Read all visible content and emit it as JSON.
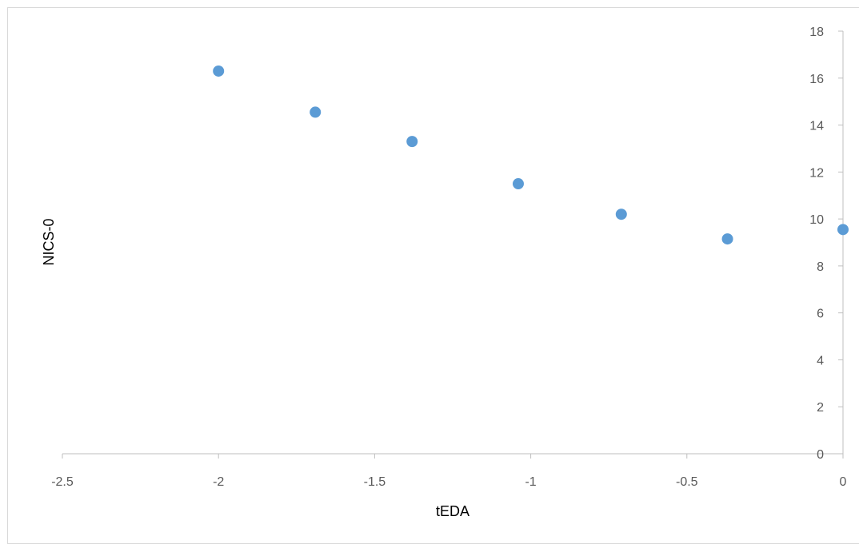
{
  "chart_data": {
    "type": "scatter",
    "title": "",
    "xlabel": "tEDA",
    "ylabel": "NICS-0",
    "xlim": [
      -2.5,
      0
    ],
    "ylim": [
      0,
      18
    ],
    "x_ticks": [
      "-2.5",
      "-2",
      "-1.5",
      "-1",
      "-0.5",
      "0"
    ],
    "y_ticks": [
      "0",
      "2",
      "4",
      "6",
      "8",
      "10",
      "12",
      "14",
      "16",
      "18"
    ],
    "grid": false,
    "legend": "none",
    "series": [
      {
        "color": "#5b9bd5",
        "x": [
          -2.0,
          -1.69,
          -1.38,
          -1.04,
          -0.71,
          -0.37,
          0.0
        ],
        "y": [
          16.3,
          14.55,
          13.3,
          11.5,
          10.2,
          9.15,
          9.55
        ]
      }
    ],
    "colors": {
      "axis": "#bfbfbf",
      "marker": "#5b9bd5",
      "tick_text": "#595959"
    }
  }
}
